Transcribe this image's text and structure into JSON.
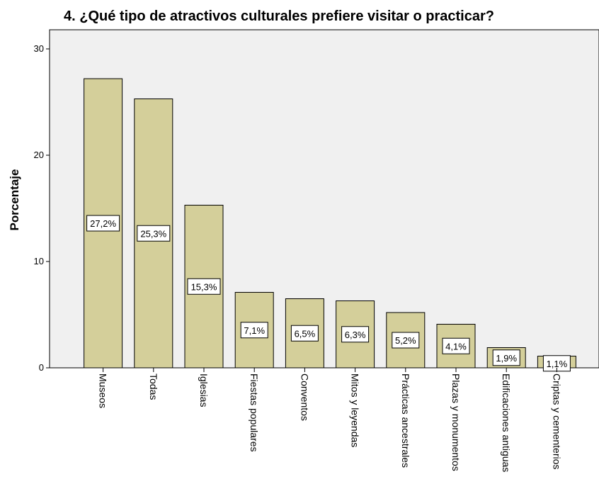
{
  "chart_data": {
    "type": "bar",
    "title": "4. ¿Qué tipo de atractivos culturales prefiere visitar o practicar?",
    "xlabel": "",
    "ylabel": "Porcentaje",
    "ylim": [
      0,
      30
    ],
    "yticks": [
      "0",
      "10",
      "20",
      "30"
    ],
    "categories": [
      "Museos",
      "Todas",
      "Iglesias",
      "Fiestas populares",
      "Conventos",
      "Mitos y leyendas",
      "Prácticas ancestrales",
      "Plazas y monumentos",
      "Edificaciones antiguas",
      "Criptas y cementerios"
    ],
    "values": [
      27.2,
      25.3,
      15.3,
      7.1,
      6.5,
      6.3,
      5.2,
      4.1,
      1.9,
      1.1
    ],
    "data_labels": [
      "27,2%",
      "25,3%",
      "15,3%",
      "7,1%",
      "6,5%",
      "6,3%",
      "5,2%",
      "4,1%",
      "1,9%",
      "1,1%"
    ],
    "grid": false,
    "colors": {
      "bar_fill": "#d4cf9a",
      "plot_bg": "#f0f0f0",
      "bar_stroke": "#000000"
    }
  }
}
